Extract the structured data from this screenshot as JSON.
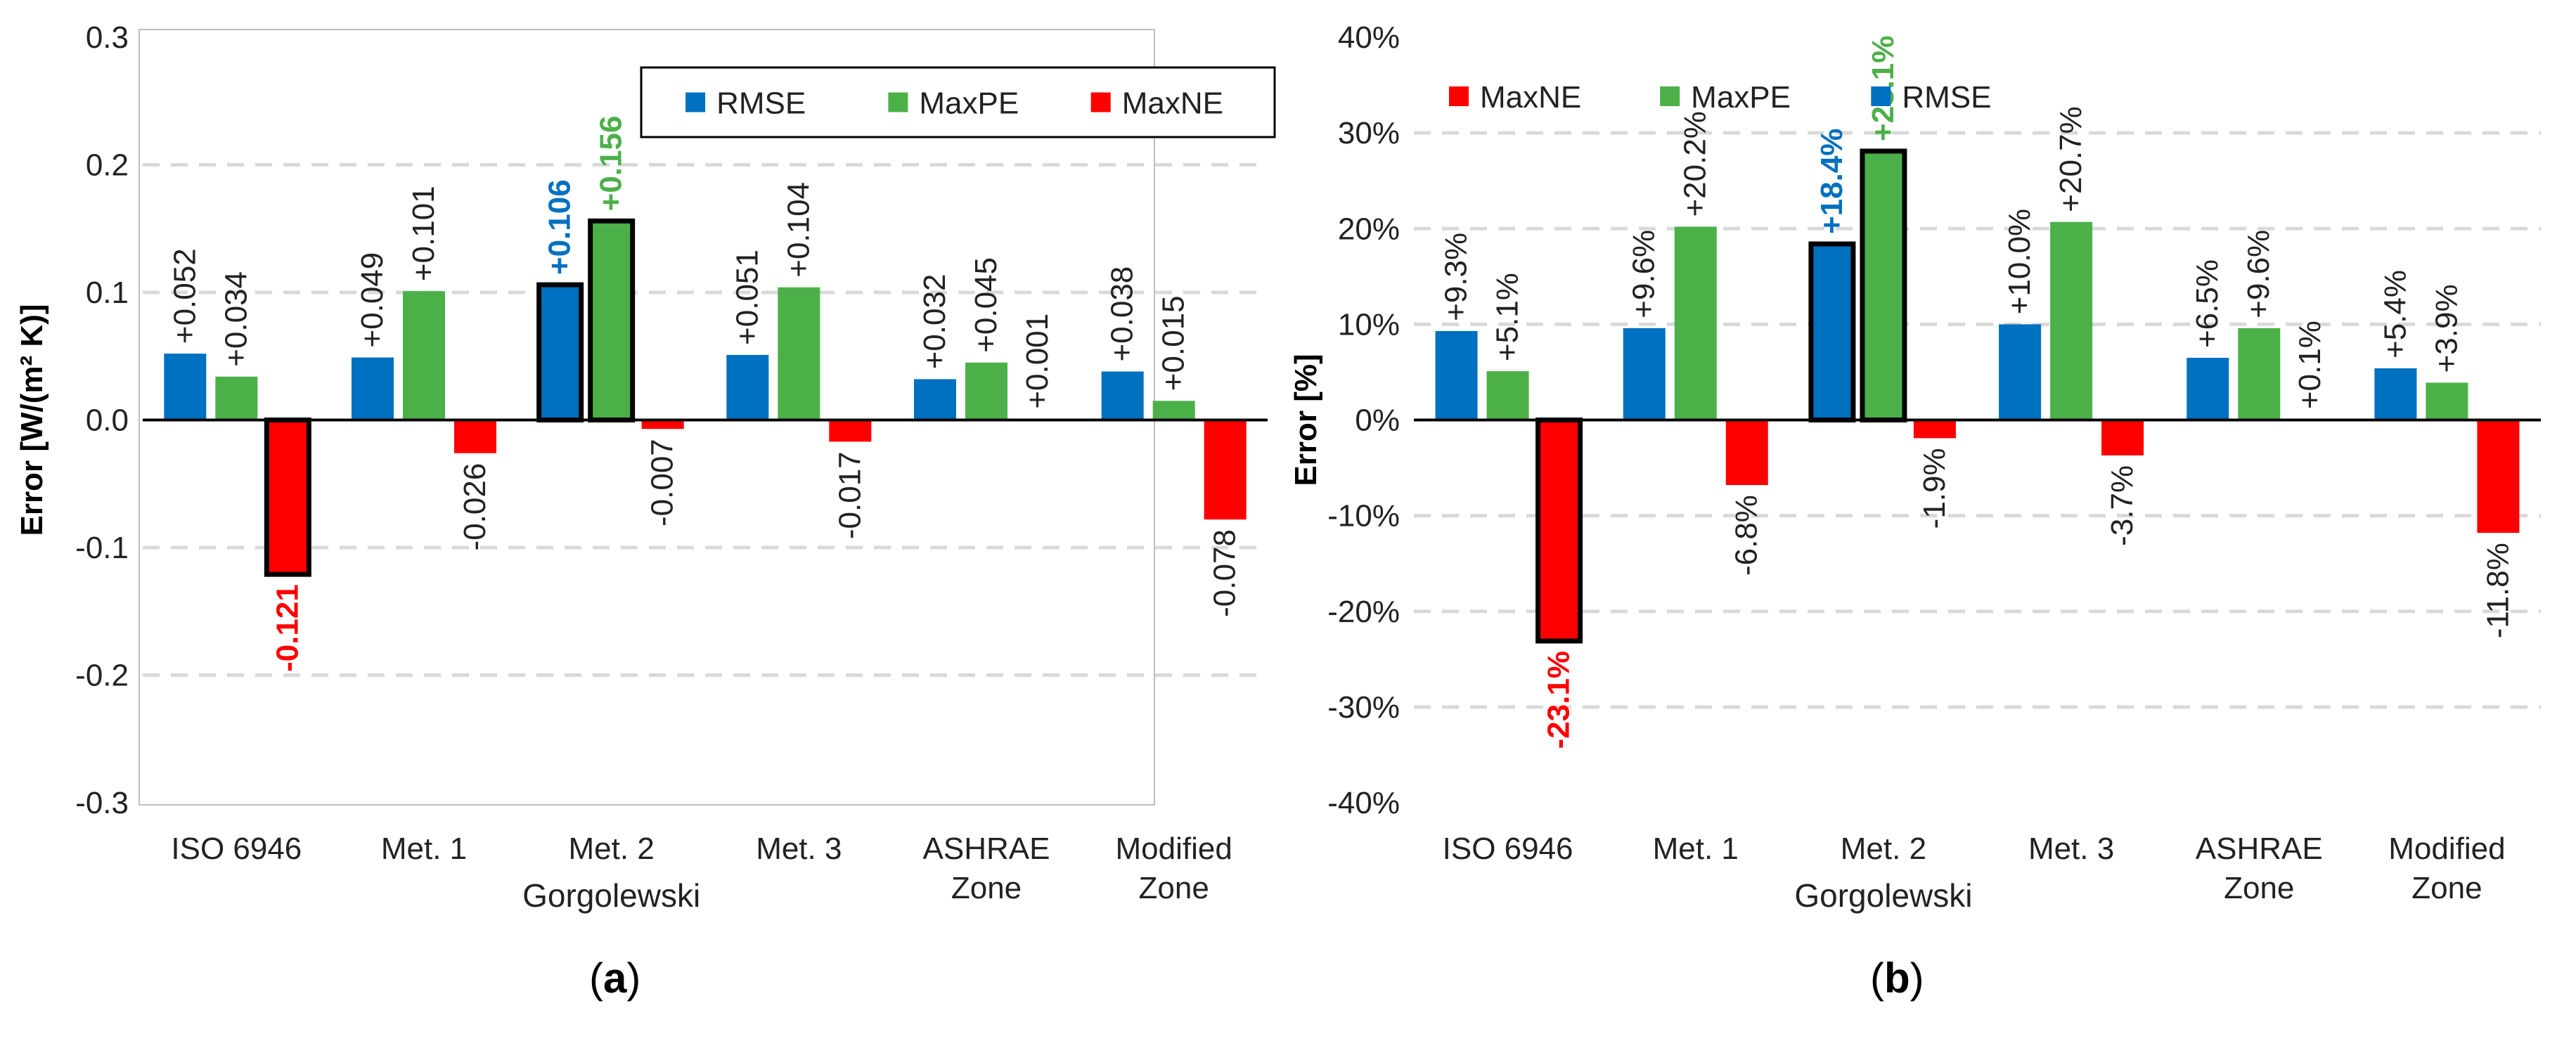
{
  "colors": {
    "RMSE": "#0070C0",
    "MaxPE": "#4CB049",
    "MaxNE": "#FF0000",
    "grid": "#D9D9D9",
    "axis": "#000000",
    "frame": "#BFBFBF"
  },
  "legend_labels": [
    "RMSE",
    "MaxPE",
    "MaxNE"
  ],
  "group_labels": [
    [
      "ISO 6946"
    ],
    [
      "Met. 1"
    ],
    [
      "Met. 2"
    ],
    [
      "Met. 3"
    ],
    [
      "ASHRAE",
      "Zone"
    ],
    [
      "Modified",
      "Zone"
    ]
  ],
  "group_caption": "Gorgolewski",
  "chart_data": [
    {
      "type": "bar",
      "panel_label": "(a)",
      "panel_letter": "a",
      "ylabel": "Error [W/(m² K)]",
      "ylim": [
        -0.3,
        0.3
      ],
      "yticks": [
        -0.3,
        -0.2,
        -0.1,
        0.0,
        0.1,
        0.2,
        0.3
      ],
      "ytick_labels": [
        "-0.3",
        "-0.2",
        "-0.1",
        "0.0",
        "0.1",
        "0.2",
        "0.3"
      ],
      "categories": [
        "ISO 6946",
        "Met. 1 Gorgolewski",
        "Met. 2 Gorgolewski",
        "Met. 3 Gorgolewski",
        "ASHRAE Zone",
        "Modified Zone"
      ],
      "series": [
        {
          "name": "RMSE",
          "values": [
            0.052,
            0.049,
            0.106,
            0.051,
            0.032,
            0.038
          ],
          "labels": [
            "+0.052",
            "+0.049",
            "+0.106",
            "+0.051",
            "+0.032",
            "+0.038"
          ],
          "highlight": [
            false,
            false,
            true,
            false,
            false,
            false
          ]
        },
        {
          "name": "MaxPE",
          "values": [
            0.034,
            0.101,
            0.156,
            0.104,
            0.045,
            0.015
          ],
          "labels": [
            "+0.034",
            "+0.101",
            "+0.156",
            "+0.104",
            "+0.045",
            "+0.015"
          ],
          "highlight": [
            false,
            false,
            true,
            false,
            false,
            false
          ]
        },
        {
          "name": "MaxNE",
          "values": [
            -0.121,
            -0.026,
            -0.007,
            -0.017,
            0.001,
            -0.078
          ],
          "labels": [
            "-0.121",
            "-0.026",
            "-0.007",
            "-0.017",
            "+0.001",
            "-0.078"
          ],
          "highlight": [
            true,
            false,
            false,
            false,
            false,
            false
          ]
        }
      ]
    },
    {
      "type": "bar",
      "panel_label": "(b)",
      "panel_letter": "b",
      "ylabel": "Error [%]",
      "ylim": [
        -40,
        40
      ],
      "yticks": [
        -40,
        -30,
        -20,
        -10,
        0,
        10,
        20,
        30,
        40
      ],
      "ytick_labels": [
        "-40%",
        "-30%",
        "-20%",
        "-10%",
        "0%",
        "10%",
        "20%",
        "30%",
        "40%"
      ],
      "categories": [
        "ISO 6946",
        "Met. 1 Gorgolewski",
        "Met. 2 Gorgolewski",
        "Met. 3 Gorgolewski",
        "ASHRAE Zone",
        "Modified Zone"
      ],
      "series": [
        {
          "name": "RMSE",
          "values": [
            9.3,
            9.6,
            18.4,
            10.0,
            6.5,
            5.4
          ],
          "labels": [
            "+9.3%",
            "+9.6%",
            "+18.4%",
            "+10.0%",
            "+6.5%",
            "+5.4%"
          ],
          "highlight": [
            false,
            false,
            true,
            false,
            false,
            false
          ]
        },
        {
          "name": "MaxPE",
          "values": [
            5.1,
            20.2,
            28.1,
            20.7,
            9.6,
            3.9
          ],
          "labels": [
            "+5.1%",
            "+20.2%",
            "+28.1%",
            "+20.7%",
            "+9.6%",
            "+3.9%"
          ],
          "highlight": [
            false,
            false,
            true,
            false,
            false,
            false
          ]
        },
        {
          "name": "MaxNE",
          "values": [
            -23.1,
            -6.8,
            -1.9,
            -3.7,
            0.1,
            -11.8
          ],
          "labels": [
            "-23.1%",
            "-6.8%",
            "-1.9%",
            "-3.7%",
            "+0.1%",
            "-11.8%"
          ],
          "highlight": [
            true,
            false,
            false,
            false,
            false,
            false
          ]
        }
      ]
    }
  ]
}
